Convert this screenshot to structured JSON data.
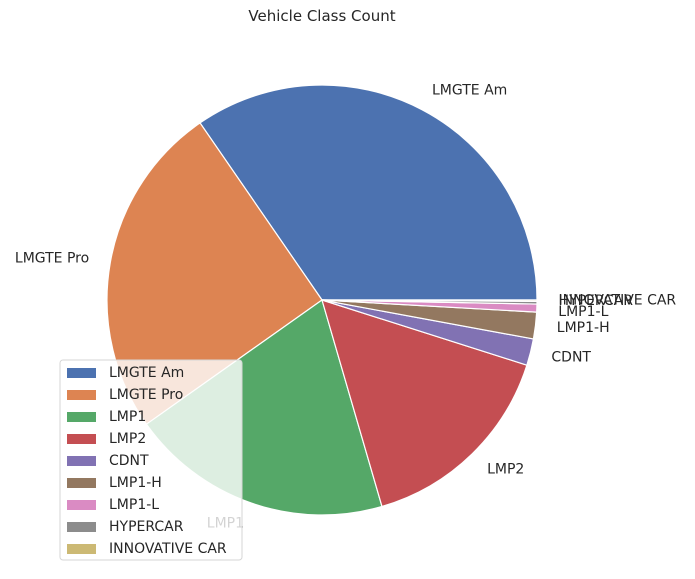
{
  "chart_data": {
    "type": "pie",
    "title": "Vehicle Class Count",
    "categories": [
      "LMGTE Am",
      "LMGTE Pro",
      "LMP1",
      "LMP2",
      "CDNT",
      "LMP1-H",
      "LMP1-L",
      "HYPERCAR",
      "INNOVATIVE CAR"
    ],
    "values": [
      34.6,
      25.2,
      19.7,
      15.6,
      2.0,
      2.0,
      0.6,
      0.2,
      0.1
    ],
    "colors": [
      "#4c72b0",
      "#dd8452",
      "#55a868",
      "#c44e52",
      "#8172b3",
      "#937860",
      "#da8bc3",
      "#8c8c8c",
      "#ccb974"
    ],
    "legend_location": "lower-left",
    "start_angle": 0,
    "direction": "counterclockwise"
  }
}
